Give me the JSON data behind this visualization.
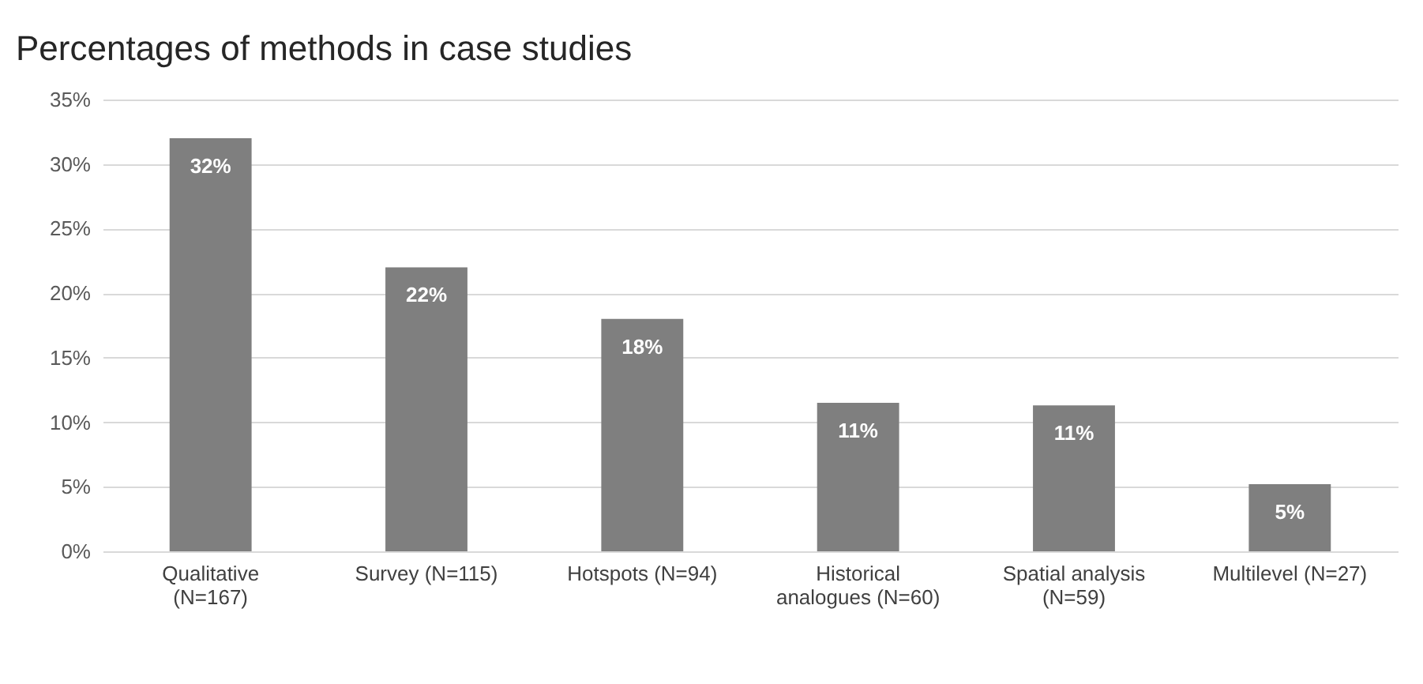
{
  "chart_data": {
    "type": "bar",
    "title": "Percentages of methods in case studies",
    "categories": [
      "Qualitative (N=167)",
      "Survey (N=115)",
      "Hotspots (N=94)",
      "Historical analogues (N=60)",
      "Spatial analysis (N=59)",
      "Multilevel (N=27)"
    ],
    "values": [
      32,
      22,
      18,
      11.5,
      11.3,
      5.2
    ],
    "value_labels": [
      "32%",
      "22%",
      "18%",
      "11%",
      "11%",
      "5%"
    ],
    "color": "#7f7f7f",
    "ylim": [
      0,
      35
    ],
    "yticks": [
      {
        "value": 0,
        "label": "0%"
      },
      {
        "value": 5,
        "label": "5%"
      },
      {
        "value": 10,
        "label": "10%"
      },
      {
        "value": 15,
        "label": "15%"
      },
      {
        "value": 20,
        "label": "20%"
      },
      {
        "value": 25,
        "label": "25%"
      },
      {
        "value": 30,
        "label": "30%"
      },
      {
        "value": 35,
        "label": "35%"
      }
    ],
    "grid": "y"
  }
}
